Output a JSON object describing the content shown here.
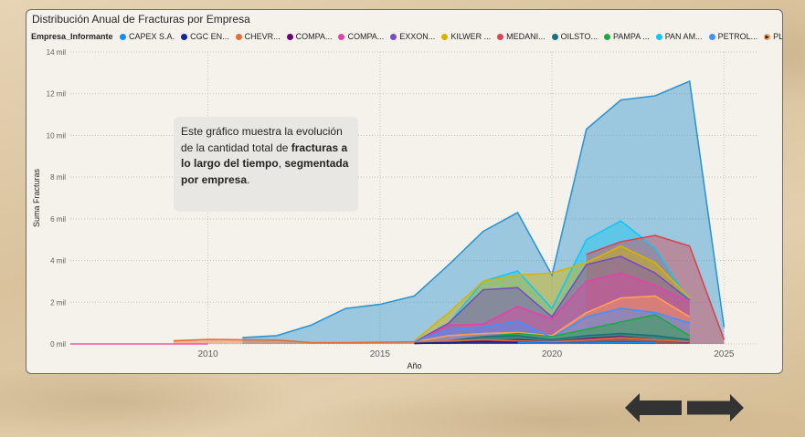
{
  "chart_data": {
    "type": "area",
    "title": "Distribución Anual de Fracturas por Empresa",
    "xlabel": "Año",
    "ylabel": "Suma Fracturas",
    "xlim": [
      2006,
      2026
    ],
    "ylim": [
      0,
      14000
    ],
    "x_ticks": [
      2010,
      2015,
      2020,
      2025
    ],
    "x_tick_labels": [
      "2010",
      "2015",
      "2020",
      "2025"
    ],
    "y_ticks": [
      0,
      2000,
      4000,
      6000,
      8000,
      10000,
      12000,
      14000
    ],
    "y_tick_labels": [
      "0 mil",
      "2 mil",
      "4 mil",
      "6 mil",
      "8 mil",
      "10 mil",
      "12 mil",
      "14 mil"
    ],
    "grid": true,
    "legend_title": "Empresa_Informante",
    "legend_position": "top",
    "stacked": false,
    "series": [
      {
        "name": "CAPEX S.A.",
        "color": "#118DFF",
        "x": [
          2019,
          2020,
          2021,
          2022,
          2023
        ],
        "values": [
          60,
          30,
          40,
          60,
          80
        ]
      },
      {
        "name": "CGC EN...",
        "color": "#12239E",
        "x": [
          2016,
          2017,
          2018,
          2019,
          2020,
          2021,
          2022,
          2023
        ],
        "values": [
          20,
          60,
          100,
          80,
          40,
          50,
          80,
          90
        ]
      },
      {
        "name": "CHEVR...",
        "color": "#E66C37",
        "x": [
          2009,
          2010,
          2011,
          2012,
          2013,
          2014,
          2015,
          2016,
          2017,
          2018,
          2019,
          2020,
          2021,
          2022,
          2023,
          2024
        ],
        "values": [
          150,
          220,
          200,
          190,
          60,
          60,
          80,
          100,
          150,
          200,
          150,
          100,
          200,
          300,
          200,
          100
        ]
      },
      {
        "name": "COMPA...",
        "color": "#6B007B",
        "x": [
          2016,
          2017,
          2018,
          2019,
          2020,
          2021,
          2022,
          2023,
          2024
        ],
        "values": [
          30,
          50,
          150,
          200,
          100,
          250,
          350,
          200,
          80
        ]
      },
      {
        "name": "COMPA...",
        "color": "#E044A7",
        "x": [
          2016,
          2017,
          2018,
          2019,
          2020,
          2021,
          2022,
          2023,
          2024
        ],
        "values": [
          60,
          900,
          950,
          1800,
          1200,
          3000,
          3400,
          2800,
          2000
        ]
      },
      {
        "name": "EXXON...",
        "color": "#744EC2",
        "x": [
          2016,
          2017,
          2018,
          2019,
          2020,
          2021,
          2022,
          2023,
          2024
        ],
        "values": [
          80,
          1000,
          2600,
          2700,
          1300,
          3800,
          4200,
          3400,
          2100
        ]
      },
      {
        "name": "KILWER ...",
        "color": "#D9B300",
        "x": [
          2016,
          2017,
          2018,
          2019,
          2020,
          2021,
          2022,
          2023,
          2024
        ],
        "values": [
          150,
          1500,
          3000,
          3300,
          3400,
          3900,
          4700,
          3900,
          2200
        ]
      },
      {
        "name": "MEDANI...",
        "color": "#D64550",
        "x": [
          2021,
          2022,
          2023,
          2024,
          2025
        ],
        "values": [
          4300,
          4900,
          5200,
          4700,
          200
        ]
      },
      {
        "name": "OILSTO...",
        "color": "#197278",
        "x": [
          2016,
          2017,
          2018,
          2019,
          2020,
          2021,
          2022,
          2023,
          2024
        ],
        "values": [
          20,
          150,
          350,
          400,
          200,
          400,
          500,
          400,
          200
        ]
      },
      {
        "name": "PAMPA ...",
        "color": "#1AAB40",
        "x": [
          2016,
          2017,
          2018,
          2019,
          2020,
          2021,
          2022,
          2023,
          2024
        ],
        "values": [
          50,
          150,
          350,
          500,
          350,
          700,
          1050,
          1400,
          400
        ]
      },
      {
        "name": "PAN AM...",
        "color": "#15C6F4",
        "x": [
          2016,
          2017,
          2018,
          2019,
          2020,
          2021,
          2022,
          2023,
          2024
        ],
        "values": [
          100,
          1000,
          3000,
          3500,
          1700,
          5000,
          5900,
          4600,
          2000
        ]
      },
      {
        "name": "PETROL...",
        "color": "#4092FF",
        "x": [
          2016,
          2017,
          2018,
          2019,
          2020,
          2021,
          2022,
          2023,
          2024
        ],
        "values": [
          100,
          700,
          800,
          1100,
          300,
          1300,
          1700,
          1500,
          1000
        ]
      },
      {
        "name": "PLUSPE...",
        "color": "#FFA058",
        "x": [
          2016,
          2017,
          2018,
          2019,
          2020,
          2021,
          2022,
          2023,
          2024
        ],
        "values": [
          100,
          400,
          500,
          550,
          400,
          1500,
          2200,
          2300,
          1300
        ]
      },
      {
        "name": "",
        "color": "#2E95CF",
        "x": [
          2011,
          2012,
          2013,
          2014,
          2015,
          2016,
          2017,
          2018,
          2019,
          2020,
          2021,
          2022,
          2023,
          2024,
          2025
        ],
        "values": [
          300,
          400,
          900,
          1700,
          1900,
          2300,
          3800,
          5400,
          6300,
          3300,
          10300,
          11700,
          11900,
          12600,
          800
        ]
      },
      {
        "name": "",
        "color": "#E75AAD",
        "x": [
          2006,
          2007,
          2008,
          2009,
          2010
        ],
        "values": [
          0,
          0,
          0,
          0,
          0
        ]
      }
    ]
  },
  "legend": {
    "title": "Empresa_Informante",
    "items": [
      {
        "label": "CAPEX S.A.",
        "color": "#118DFF"
      },
      {
        "label": "CGC EN...",
        "color": "#12239E"
      },
      {
        "label": "CHEVR...",
        "color": "#E66C37"
      },
      {
        "label": "COMPA...",
        "color": "#6B007B"
      },
      {
        "label": "COMPA...",
        "color": "#E044A7"
      },
      {
        "label": "EXXON...",
        "color": "#744EC2"
      },
      {
        "label": "KILWER ...",
        "color": "#D9B300"
      },
      {
        "label": "MEDANI...",
        "color": "#D64550"
      },
      {
        "label": "OILSTO...",
        "color": "#197278"
      },
      {
        "label": "PAMPA ...",
        "color": "#1AAB40"
      },
      {
        "label": "PAN AM...",
        "color": "#15C6F4"
      },
      {
        "label": "PETROL...",
        "color": "#4092FF"
      },
      {
        "label": "PLUSPE...",
        "color": "#FFA058"
      }
    ],
    "more_icon": "caret-right-icon"
  },
  "annotation": {
    "text_1": "Este gráfico muestra la evolución de la cantidad total de ",
    "bold_1": "fracturas a lo largo del tiempo",
    "text_2": ", ",
    "bold_2": "segmentada por empresa",
    "text_3": "."
  },
  "navigation": {
    "back_icon": "arrow-left-icon",
    "forward_icon": "arrow-right-icon",
    "color": "#333333"
  }
}
